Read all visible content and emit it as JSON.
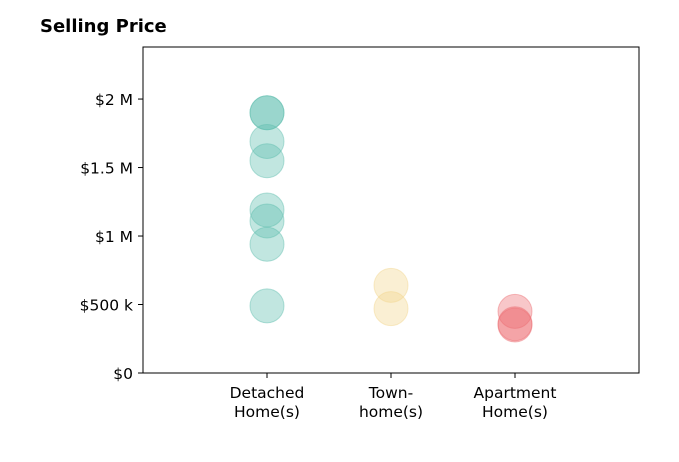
{
  "chart_data": {
    "type": "scatter",
    "title": "Selling Price",
    "xlabel": "",
    "ylabel": "",
    "ylim": [
      0,
      2380000
    ],
    "grid": false,
    "y_ticks": [
      {
        "value": 0,
        "label": "$0"
      },
      {
        "value": 500000,
        "label": "$500 k"
      },
      {
        "value": 1000000,
        "label": "$1 M"
      },
      {
        "value": 1500000,
        "label": "$1.5 M"
      },
      {
        "value": 2000000,
        "label": "$2 M"
      }
    ],
    "categories": [
      {
        "lines": [
          "Detached",
          "Home(s)"
        ]
      },
      {
        "lines": [
          "Town-",
          "home(s)"
        ]
      },
      {
        "lines": [
          "Apartment",
          "Home(s)"
        ]
      }
    ],
    "series": [
      {
        "category_index": 0,
        "color": "#5dbdae",
        "values": [
          1900000,
          1900000,
          1690000,
          1550000,
          1190000,
          1110000,
          940000,
          490000
        ]
      },
      {
        "category_index": 1,
        "color": "#f1d48c",
        "values": [
          640000,
          470000
        ]
      },
      {
        "category_index": 2,
        "color": "#ec6c72",
        "values": [
          450000,
          360000,
          350000
        ]
      }
    ]
  }
}
